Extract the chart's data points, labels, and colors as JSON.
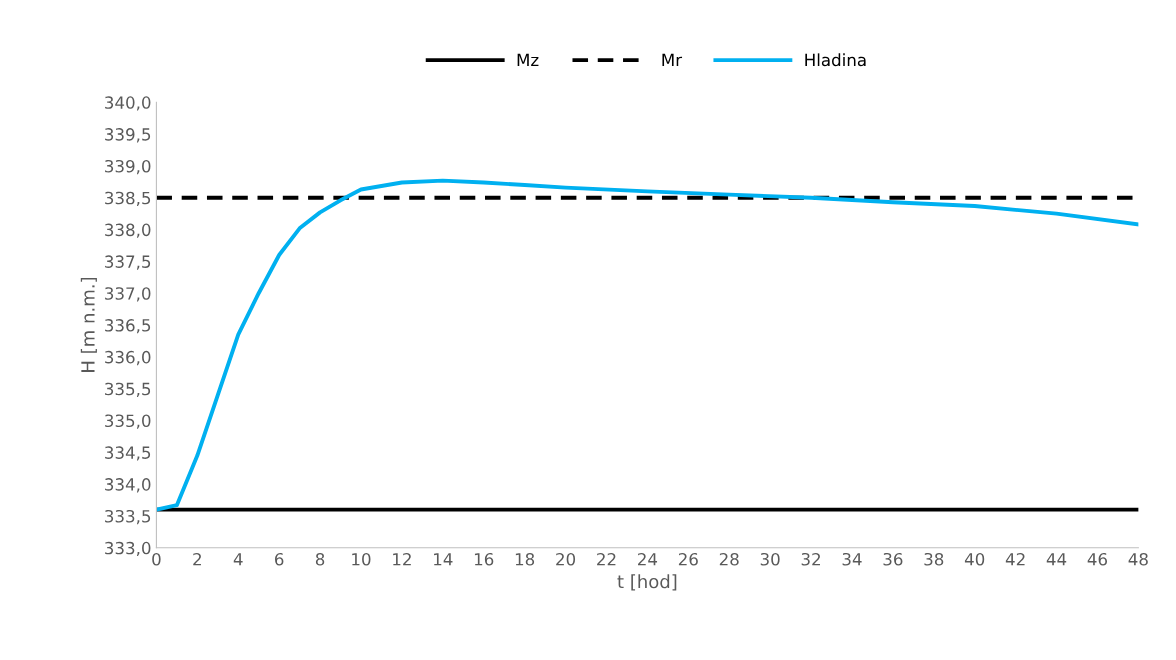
{
  "chart_data": {
    "type": "line",
    "xlabel": "t [hod]",
    "ylabel": "H [m n.m.]",
    "xlim": [
      0,
      48
    ],
    "xticks": [
      0,
      2,
      4,
      6,
      8,
      10,
      12,
      14,
      16,
      18,
      20,
      22,
      24,
      26,
      28,
      30,
      32,
      34,
      36,
      38,
      40,
      42,
      44,
      46,
      48
    ],
    "ylim": [
      333.0,
      340.0
    ],
    "yticks": [
      {
        "value": 333.0,
        "label": "333,0"
      },
      {
        "value": 333.5,
        "label": "333,5"
      },
      {
        "value": 334.0,
        "label": "334,0"
      },
      {
        "value": 334.5,
        "label": "334,5"
      },
      {
        "value": 335.0,
        "label": "335,0"
      },
      {
        "value": 335.5,
        "label": "335,5"
      },
      {
        "value": 336.0,
        "label": "336,0"
      },
      {
        "value": 336.5,
        "label": "336,5"
      },
      {
        "value": 337.0,
        "label": "337,0"
      },
      {
        "value": 337.5,
        "label": "337,5"
      },
      {
        "value": 338.0,
        "label": "338,0"
      },
      {
        "value": 338.5,
        "label": "338,5"
      },
      {
        "value": 339.0,
        "label": "339,0"
      },
      {
        "value": 339.5,
        "label": "339,5"
      },
      {
        "value": 340.0,
        "label": "340,0"
      }
    ],
    "grid": false,
    "legend": "top",
    "marker": "none",
    "series": [
      {
        "name": "Mz",
        "color": "#000000",
        "line_style": "solid",
        "x": [
          0,
          48
        ],
        "values": [
          333.6,
          333.6
        ]
      },
      {
        "name": "Mr",
        "color": "#000000",
        "line_style": "dashed",
        "x": [
          0,
          48
        ],
        "values": [
          338.5,
          338.5
        ]
      },
      {
        "name": "Hladina",
        "color": "#00b0f0",
        "line_style": "solid",
        "x": [
          0,
          1,
          2,
          3,
          4,
          5,
          6,
          7,
          8,
          9,
          10,
          12,
          14,
          16,
          18,
          20,
          24,
          28,
          32,
          36,
          40,
          44,
          48
        ],
        "values": [
          333.6,
          333.67,
          334.45,
          335.4,
          336.35,
          337.0,
          337.6,
          338.02,
          338.27,
          338.46,
          338.63,
          338.74,
          338.77,
          338.74,
          338.7,
          338.66,
          338.6,
          338.55,
          338.5,
          338.43,
          338.37,
          338.25,
          338.08
        ]
      }
    ]
  }
}
